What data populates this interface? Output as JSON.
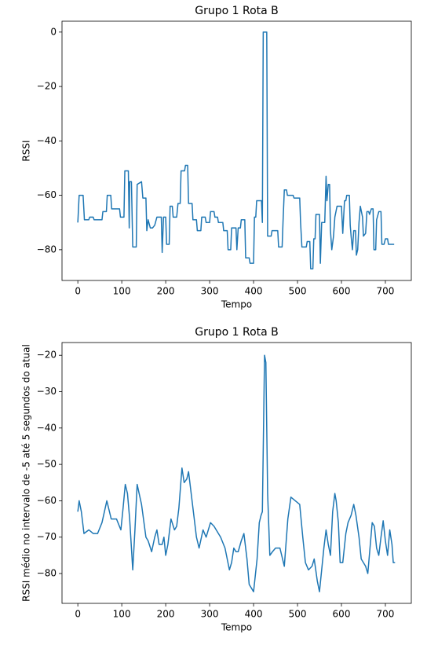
{
  "chart_data": [
    {
      "type": "line",
      "title": "Grupo 1 Rota B",
      "xlabel": "Tempo",
      "ylabel": "RSSI",
      "color": "#1f77b4",
      "xlim": [
        -36,
        759
      ],
      "ylim": [
        -91.3,
        4.0
      ],
      "xticks": [
        0,
        100,
        200,
        300,
        400,
        500,
        600,
        700
      ],
      "yticks": [
        0,
        {
          "value": -20,
          "label": "−20"
        },
        {
          "value": -40,
          "label": "−40"
        },
        {
          "value": -60,
          "label": "−60"
        },
        {
          "value": -80,
          "label": "−80"
        }
      ],
      "x": [
        0,
        3,
        12,
        15,
        25,
        27,
        35,
        37,
        55,
        57,
        65,
        67,
        75,
        77,
        95,
        97,
        105,
        107,
        115,
        117,
        118,
        122,
        125,
        133,
        135,
        145,
        148,
        155,
        157,
        160,
        165,
        170,
        175,
        180,
        190,
        192,
        195,
        200,
        202,
        208,
        210,
        215,
        217,
        225,
        228,
        233,
        235,
        243,
        245,
        250,
        252,
        260,
        262,
        270,
        272,
        280,
        282,
        290,
        292,
        300,
        302,
        310,
        312,
        318,
        320,
        330,
        332,
        340,
        342,
        348,
        350,
        360,
        362,
        365,
        370,
        372,
        380,
        382,
        390,
        392,
        400,
        402,
        405,
        407,
        418,
        420,
        422,
        430,
        432,
        440,
        442,
        455,
        457,
        465,
        467,
        470,
        475,
        477,
        490,
        492,
        505,
        507,
        510,
        520,
        522,
        528,
        530,
        535,
        537,
        540,
        542,
        550,
        552,
        555,
        562,
        565,
        567,
        570,
        573,
        575,
        578,
        582,
        585,
        590,
        600,
        603,
        607,
        610,
        612,
        618,
        620,
        622,
        625,
        628,
        632,
        634,
        637,
        640,
        643,
        648,
        650,
        655,
        658,
        662,
        664,
        668,
        672,
        674,
        678,
        680,
        685,
        690,
        692,
        697,
        700,
        705,
        707,
        720
      ],
      "values": [
        -70,
        -60,
        -60,
        -69,
        -69,
        -68,
        -68,
        -69,
        -69,
        -66,
        -66,
        -60,
        -60,
        -65,
        -65,
        -68,
        -68,
        -51,
        -51,
        -72,
        -55,
        -55,
        -79,
        -79,
        -56,
        -55,
        -61,
        -61,
        -73,
        -69,
        -72,
        -72,
        -71,
        -68,
        -68,
        -81,
        -68,
        -68,
        -78,
        -78,
        -64,
        -64,
        -68,
        -68,
        -63,
        -63,
        -51,
        -51,
        -49,
        -49,
        -63,
        -63,
        -69,
        -69,
        -73,
        -73,
        -68,
        -68,
        -70,
        -70,
        -66,
        -66,
        -68,
        -68,
        -70,
        -70,
        -73,
        -73,
        -80,
        -80,
        -72,
        -72,
        -80,
        -72,
        -72,
        -69,
        -69,
        -83,
        -83,
        -85,
        -85,
        -68,
        -68,
        -62,
        -62,
        -70,
        0,
        0,
        -75,
        -75,
        -73,
        -73,
        -79,
        -79,
        -70,
        -58,
        -58,
        -60,
        -60,
        -61,
        -61,
        -70,
        -79,
        -79,
        -77,
        -77,
        -87,
        -87,
        -76,
        -76,
        -67,
        -67,
        -85,
        -70,
        -70,
        -53,
        -62,
        -56,
        -56,
        -73,
        -80,
        -75,
        -68,
        -64,
        -64,
        -74,
        -62,
        -62,
        -60,
        -60,
        -71,
        -75,
        -80,
        -73,
        -73,
        -82,
        -80,
        -70,
        -64,
        -68,
        -75,
        -74,
        -66,
        -66,
        -67,
        -65,
        -65,
        -80,
        -80,
        -69,
        -66,
        -66,
        -78,
        -78,
        -76,
        -76,
        -78,
        -78
      ]
    },
    {
      "type": "line",
      "title": "Grupo 1 Rota B",
      "xlabel": "Tempo",
      "ylabel": "RSSI médio no intervalo de -5 até 5 segundos do atual",
      "color": "#1f77b4",
      "xlim": [
        -36,
        759
      ],
      "ylim": [
        -88.2,
        -16.5
      ],
      "xticks": [
        0,
        100,
        200,
        300,
        400,
        500,
        600,
        700
      ],
      "yticks": [
        {
          "value": -20,
          "label": "−20"
        },
        {
          "value": -30,
          "label": "−30"
        },
        {
          "value": -40,
          "label": "−40"
        },
        {
          "value": -50,
          "label": "−50"
        },
        {
          "value": -60,
          "label": "−60"
        },
        {
          "value": -70,
          "label": "−70"
        },
        {
          "value": -80,
          "label": "−80"
        }
      ],
      "x": [
        0,
        3,
        8,
        14,
        25,
        35,
        45,
        55,
        66,
        76,
        88,
        98,
        103,
        108,
        113,
        118,
        125,
        130,
        135,
        145,
        155,
        160,
        168,
        175,
        180,
        185,
        192,
        196,
        200,
        205,
        212,
        220,
        225,
        230,
        237,
        242,
        248,
        252,
        257,
        263,
        270,
        276,
        285,
        292,
        302,
        310,
        325,
        335,
        345,
        350,
        355,
        360,
        365,
        372,
        378,
        385,
        390,
        400,
        408,
        413,
        417,
        420,
        425,
        428,
        432,
        437,
        443,
        450,
        460,
        470,
        478,
        485,
        495,
        505,
        512,
        518,
        525,
        533,
        538,
        545,
        550,
        555,
        560,
        565,
        570,
        575,
        580,
        585,
        588,
        593,
        597,
        603,
        610,
        615,
        622,
        628,
        633,
        640,
        645,
        655,
        660,
        665,
        670,
        675,
        680,
        685,
        690,
        695,
        700,
        705,
        710,
        715,
        718,
        722
      ],
      "values": [
        -63,
        -60,
        -63,
        -69,
        -68,
        -69,
        -69,
        -66,
        -60,
        -65,
        -65,
        -68,
        -62,
        -55.5,
        -58,
        -65,
        -79,
        -68,
        -55.5,
        -61,
        -70,
        -71,
        -74,
        -70,
        -68,
        -72,
        -72,
        -70,
        -75,
        -72,
        -65,
        -68,
        -67,
        -62,
        -51,
        -55,
        -54,
        -52,
        -57,
        -63,
        -70,
        -73,
        -68,
        -70,
        -66,
        -67,
        -70,
        -73,
        -79,
        -77,
        -73,
        -74,
        -74,
        -71,
        -69,
        -76,
        -83,
        -85,
        -76,
        -66,
        -64,
        -63,
        -20,
        -22,
        -58,
        -75,
        -74,
        -73,
        -73,
        -78,
        -65,
        -59,
        -60,
        -61,
        -70,
        -77,
        -79,
        -78,
        -76,
        -82,
        -85,
        -79,
        -73,
        -68,
        -72,
        -75,
        -63,
        -58,
        -60,
        -66,
        -77,
        -77,
        -69,
        -66,
        -64,
        -61,
        -64,
        -70,
        -76,
        -78,
        -80,
        -73,
        -66,
        -67,
        -73,
        -75,
        -70,
        -65.5,
        -71,
        -75,
        -68,
        -72,
        -77,
        -77
      ]
    }
  ]
}
